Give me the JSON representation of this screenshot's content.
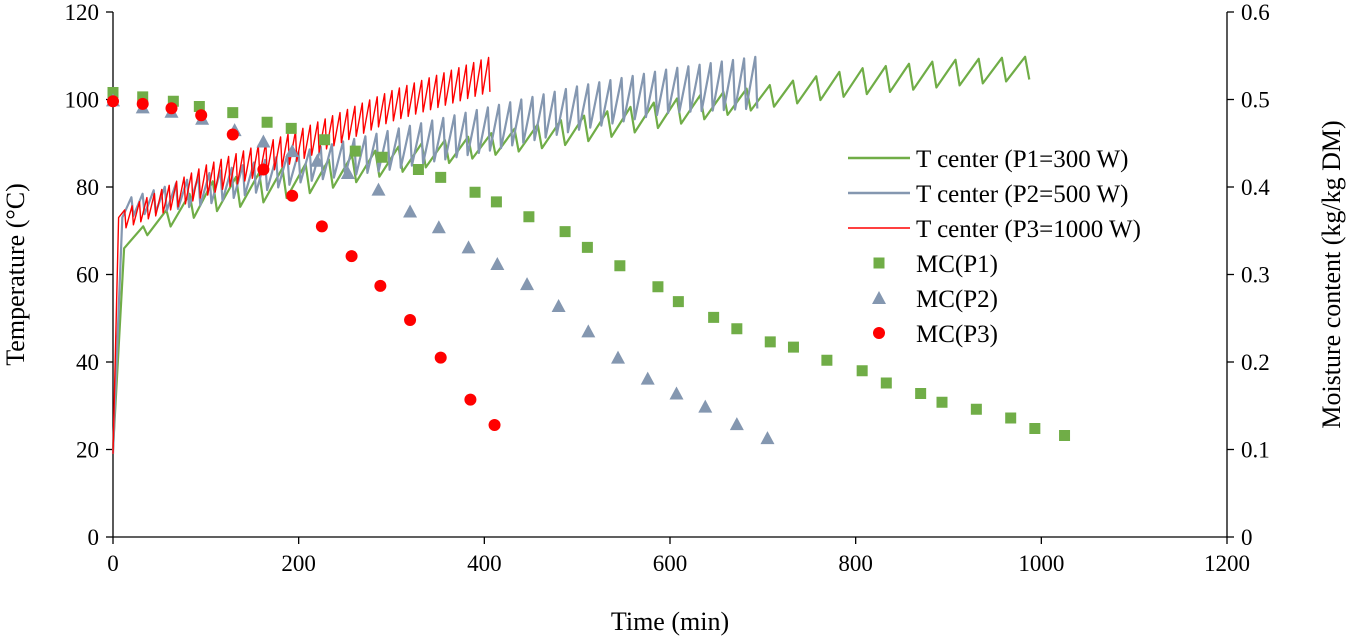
{
  "chart_data": {
    "type": "line+scatter",
    "xlabel": "Time (min)",
    "ylabel": "Temperature (°C)",
    "y2label": "Moisture content (kg/kg DM)",
    "xlim": [
      0,
      1200
    ],
    "ylim": [
      0,
      120
    ],
    "y2lim": [
      0,
      0.6
    ],
    "xticks": [
      "0",
      "200",
      "400",
      "600",
      "800",
      "1000",
      "1200"
    ],
    "yticks": [
      "0",
      "20",
      "40",
      "60",
      "80",
      "100",
      "120"
    ],
    "y2ticks": [
      "0",
      "0.1",
      "0.2",
      "0.3",
      "0.4",
      "0.5",
      "0.6"
    ],
    "grid": false,
    "legend_position": "right",
    "line_series": [
      {
        "name": "T center (P1=300 W)",
        "color": "#70ad47",
        "axis": "left",
        "start": [
          0,
          20
        ],
        "rise_to": [
          12,
          66
        ],
        "end_time": 1010,
        "cycle_period_min": 25,
        "trough_envelope": [
          [
            12,
            67
          ],
          [
            100,
            74
          ],
          [
            200,
            78
          ],
          [
            300,
            83
          ],
          [
            400,
            87
          ],
          [
            500,
            90
          ],
          [
            600,
            94
          ],
          [
            700,
            98
          ],
          [
            800,
            101
          ],
          [
            900,
            103
          ],
          [
            1010,
            105
          ]
        ],
        "peak_envelope": [
          [
            12,
            68
          ],
          [
            100,
            81
          ],
          [
            200,
            85
          ],
          [
            300,
            89
          ],
          [
            400,
            92
          ],
          [
            500,
            96
          ],
          [
            600,
            100
          ],
          [
            700,
            103
          ],
          [
            800,
            107
          ],
          [
            900,
            109
          ],
          [
            1010,
            110
          ]
        ]
      },
      {
        "name": "T center (P2=500 W)",
        "color": "#8497b0",
        "axis": "left",
        "start": [
          0,
          19
        ],
        "rise_to": [
          10,
          73
        ],
        "end_time": 700,
        "cycle_period_min": 12,
        "trough_envelope": [
          [
            10,
            73
          ],
          [
            100,
            76
          ],
          [
            200,
            81
          ],
          [
            300,
            84
          ],
          [
            400,
            88
          ],
          [
            500,
            93
          ],
          [
            600,
            97
          ],
          [
            700,
            98
          ]
        ],
        "peak_envelope": [
          [
            10,
            77
          ],
          [
            100,
            83
          ],
          [
            200,
            88
          ],
          [
            300,
            93
          ],
          [
            400,
            98
          ],
          [
            500,
            103
          ],
          [
            600,
            107
          ],
          [
            700,
            110
          ]
        ]
      },
      {
        "name": "T center (P3=1000 W)",
        "color": "#ff0000",
        "axis": "left",
        "start": [
          0,
          19
        ],
        "rise_to": [
          6,
          73
        ],
        "end_time": 410,
        "cycle_period_min": 8,
        "trough_envelope": [
          [
            6,
            70
          ],
          [
            100,
            78
          ],
          [
            200,
            86
          ],
          [
            300,
            95
          ],
          [
            410,
            102
          ]
        ],
        "peak_envelope": [
          [
            6,
            74
          ],
          [
            100,
            85
          ],
          [
            200,
            93
          ],
          [
            300,
            102
          ],
          [
            410,
            110
          ]
        ]
      }
    ],
    "scatter_series": [
      {
        "name": "MC(P1)",
        "marker": "square",
        "color": "#70ad47",
        "axis": "right",
        "points": [
          [
            0,
            0.508
          ],
          [
            32,
            0.503
          ],
          [
            65,
            0.498
          ],
          [
            93,
            0.492
          ],
          [
            129,
            0.485
          ],
          [
            166,
            0.474
          ],
          [
            192,
            0.467
          ],
          [
            228,
            0.454
          ],
          [
            261,
            0.441
          ],
          [
            290,
            0.434
          ],
          [
            329,
            0.42
          ],
          [
            353,
            0.411
          ],
          [
            390,
            0.394
          ],
          [
            413,
            0.383
          ],
          [
            448,
            0.366
          ],
          [
            487,
            0.349
          ],
          [
            511,
            0.331
          ],
          [
            546,
            0.31
          ],
          [
            587,
            0.286
          ],
          [
            609,
            0.269
          ],
          [
            647,
            0.251
          ],
          [
            672,
            0.238
          ],
          [
            708,
            0.223
          ],
          [
            733,
            0.217
          ],
          [
            769,
            0.202
          ],
          [
            807,
            0.19
          ],
          [
            833,
            0.176
          ],
          [
            870,
            0.164
          ],
          [
            893,
            0.154
          ],
          [
            930,
            0.146
          ],
          [
            967,
            0.136
          ],
          [
            993,
            0.124
          ],
          [
            1025,
            0.116
          ]
        ]
      },
      {
        "name": "MC(P2)",
        "marker": "triangle",
        "color": "#8497b0",
        "axis": "right",
        "points": [
          [
            0,
            0.499
          ],
          [
            32,
            0.491
          ],
          [
            63,
            0.486
          ],
          [
            96,
            0.478
          ],
          [
            131,
            0.465
          ],
          [
            162,
            0.452
          ],
          [
            193,
            0.441
          ],
          [
            220,
            0.43
          ],
          [
            253,
            0.416
          ],
          [
            286,
            0.397
          ],
          [
            320,
            0.372
          ],
          [
            351,
            0.354
          ],
          [
            383,
            0.331
          ],
          [
            414,
            0.312
          ],
          [
            446,
            0.289
          ],
          [
            480,
            0.264
          ],
          [
            512,
            0.235
          ],
          [
            544,
            0.205
          ],
          [
            576,
            0.181
          ],
          [
            607,
            0.164
          ],
          [
            638,
            0.149
          ],
          [
            672,
            0.129
          ],
          [
            705,
            0.113
          ]
        ]
      },
      {
        "name": "MC(P3)",
        "marker": "circle",
        "color": "#ff0000",
        "axis": "right",
        "points": [
          [
            0,
            0.498
          ],
          [
            32,
            0.495
          ],
          [
            63,
            0.49
          ],
          [
            95,
            0.482
          ],
          [
            129,
            0.46
          ],
          [
            162,
            0.42
          ],
          [
            193,
            0.39
          ],
          [
            225,
            0.355
          ],
          [
            257,
            0.321
          ],
          [
            288,
            0.287
          ],
          [
            320,
            0.248
          ],
          [
            353,
            0.205
          ],
          [
            385,
            0.157
          ],
          [
            411,
            0.128
          ]
        ]
      }
    ]
  }
}
